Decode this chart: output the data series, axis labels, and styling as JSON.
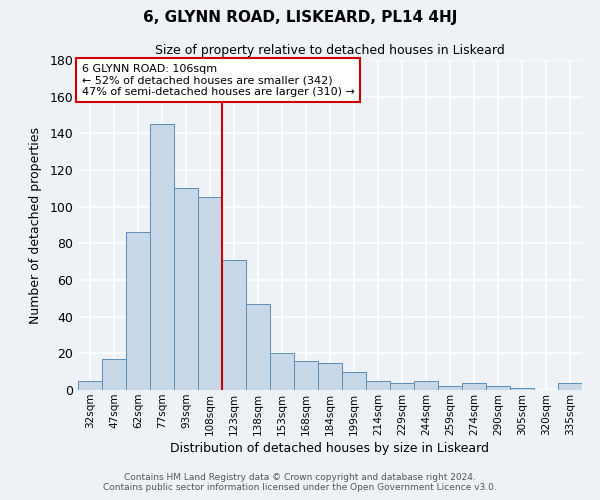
{
  "title": "6, GLYNN ROAD, LISKEARD, PL14 4HJ",
  "subtitle": "Size of property relative to detached houses in Liskeard",
  "xlabel": "Distribution of detached houses by size in Liskeard",
  "ylabel": "Number of detached properties",
  "bar_color": "#c8d8e8",
  "bar_edge_color": "#5b8db8",
  "background_color": "#eef2f7",
  "grid_color": "#ffffff",
  "categories": [
    "32sqm",
    "47sqm",
    "62sqm",
    "77sqm",
    "93sqm",
    "108sqm",
    "123sqm",
    "138sqm",
    "153sqm",
    "168sqm",
    "184sqm",
    "199sqm",
    "214sqm",
    "229sqm",
    "244sqm",
    "259sqm",
    "274sqm",
    "290sqm",
    "305sqm",
    "320sqm",
    "335sqm"
  ],
  "values": [
    5,
    17,
    86,
    145,
    110,
    105,
    71,
    47,
    20,
    16,
    15,
    10,
    5,
    4,
    5,
    2,
    4,
    2,
    1,
    0,
    4
  ],
  "ylim": [
    0,
    180
  ],
  "yticks": [
    0,
    20,
    40,
    60,
    80,
    100,
    120,
    140,
    160,
    180
  ],
  "vline_x": 5.5,
  "vline_color": "#cc0000",
  "annotation_title": "6 GLYNN ROAD: 106sqm",
  "annotation_line1": "← 52% of detached houses are smaller (342)",
  "annotation_line2": "47% of semi-detached houses are larger (310) →",
  "annotation_box_color": "#cc0000",
  "footer_line1": "Contains HM Land Registry data © Crown copyright and database right 2024.",
  "footer_line2": "Contains public sector information licensed under the Open Government Licence v3.0."
}
